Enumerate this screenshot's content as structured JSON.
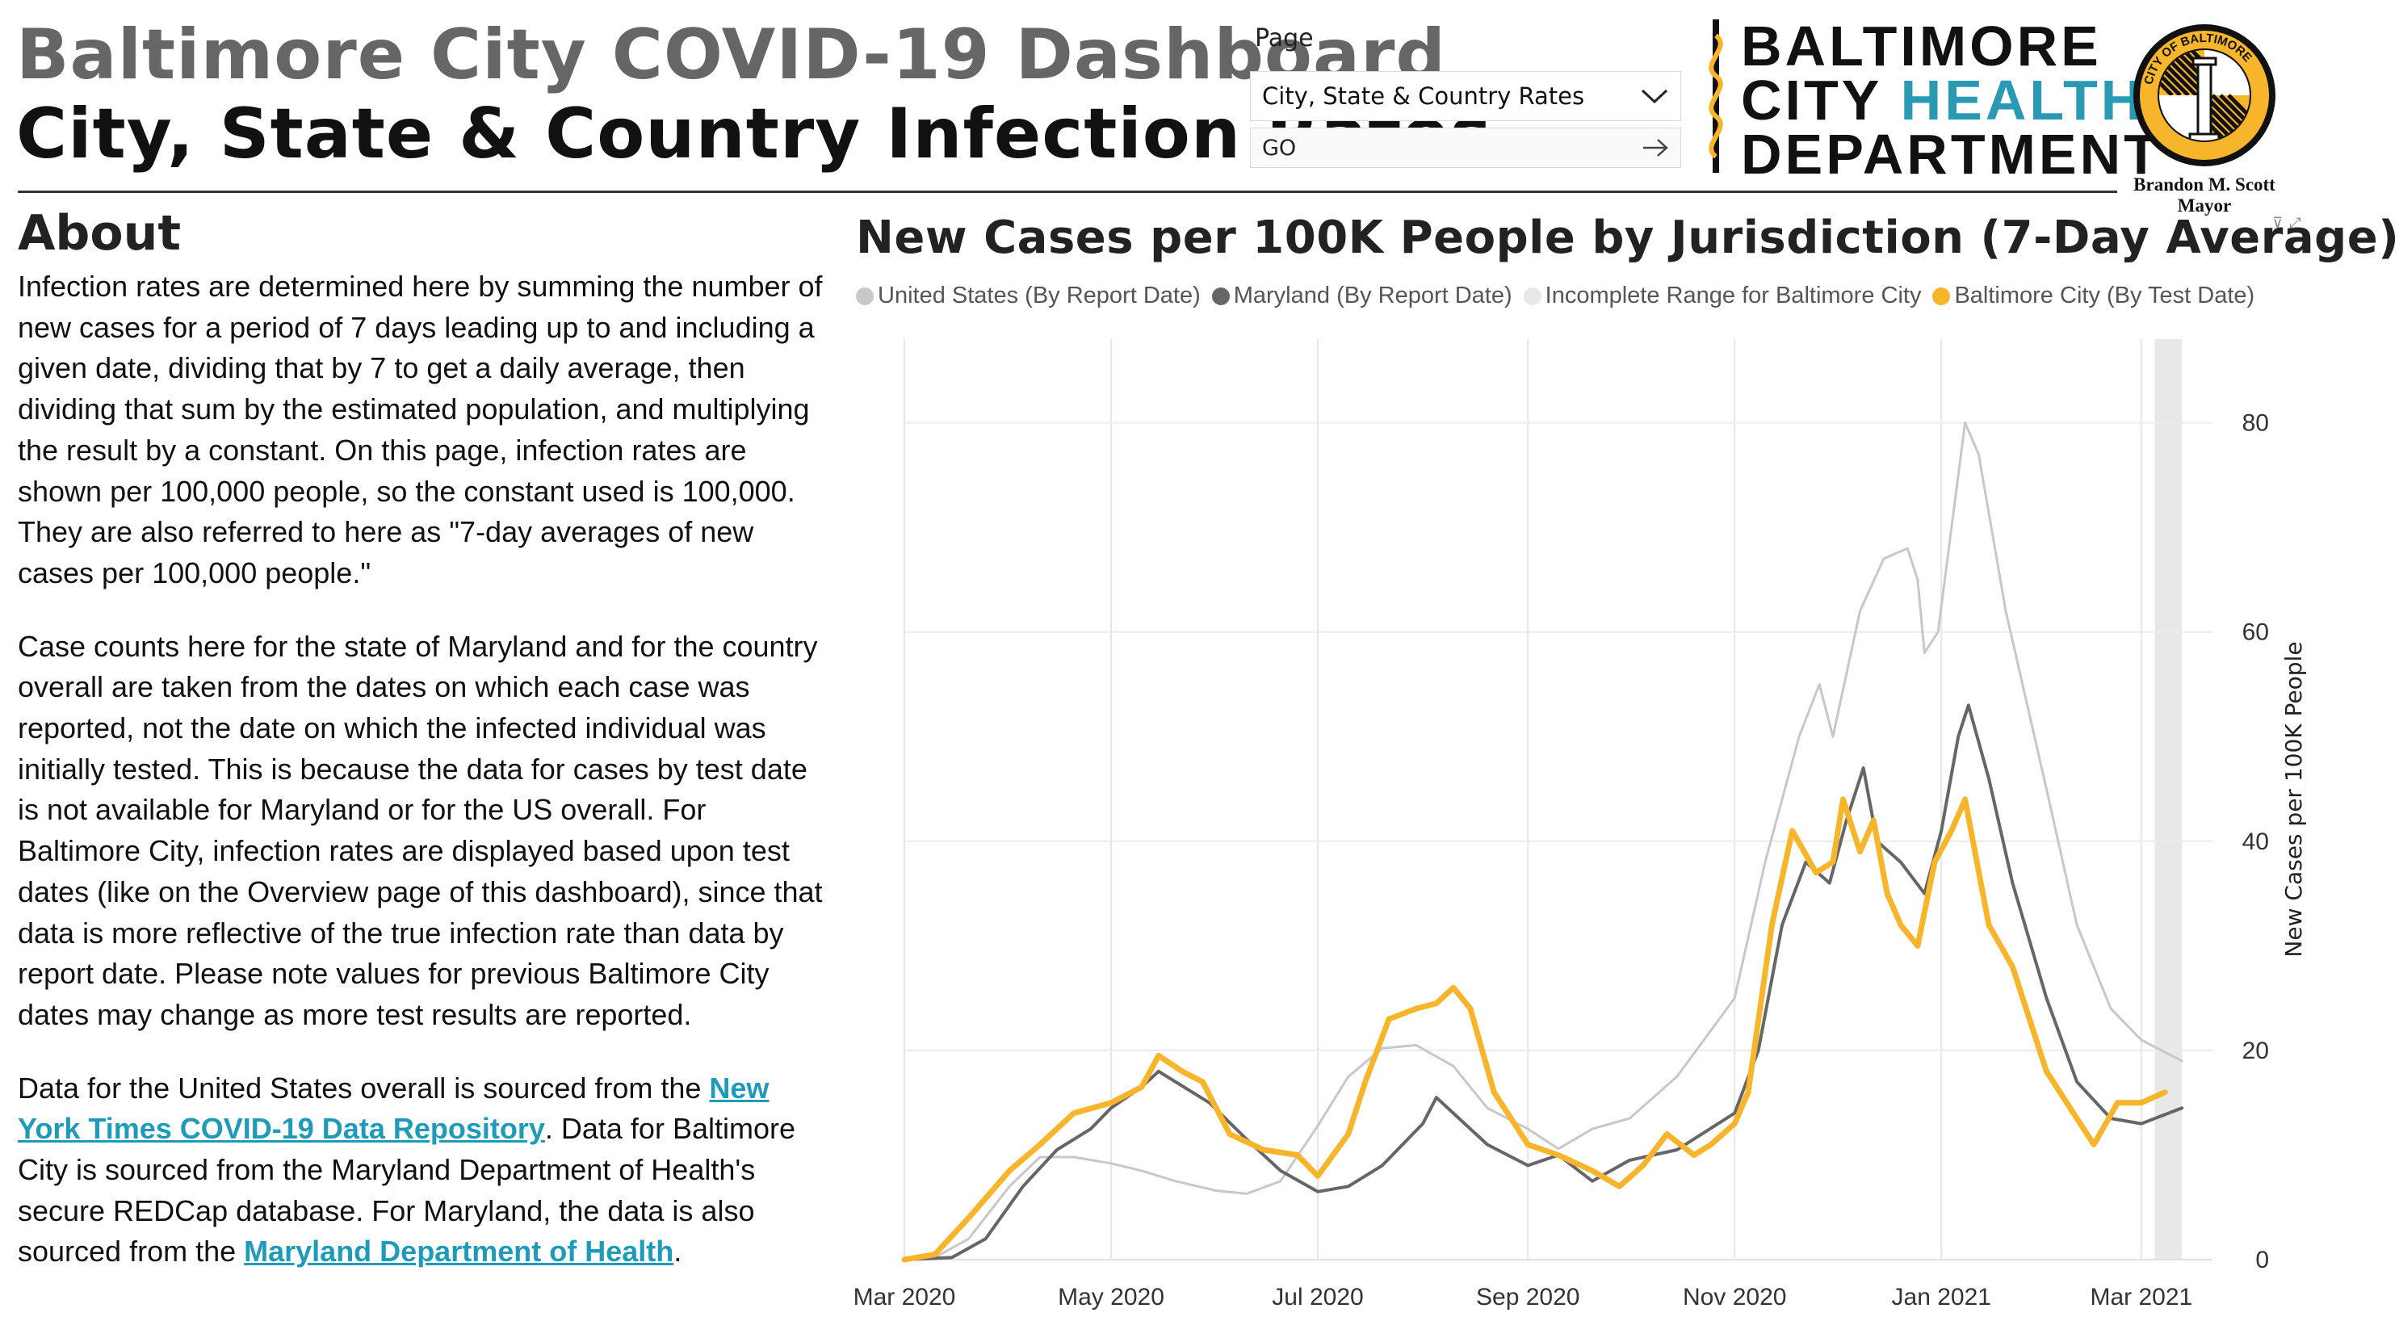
{
  "header": {
    "title": "Baltimore City COVID-19 Dashboard",
    "subtitle": "City, State & Country Infection Rates"
  },
  "nav": {
    "page_label": "Page",
    "page_value": "City, State & Country Rates",
    "go_label": "GO"
  },
  "logo": {
    "line1": "BALTIMORE",
    "line2a": "CITY ",
    "line2b": "HEALTH",
    "line3": "DEPARTMENT",
    "teal_color": "#2a99b4"
  },
  "seal": {
    "ring_text": "CITY OF BALTIMORE",
    "mayor_name": "Brandon M. Scott",
    "mayor_title": "Mayor"
  },
  "about": {
    "heading": "About",
    "p1": "Infection rates are determined here by summing the number of new cases for a period of 7 days leading up to and including a given date, dividing that by 7 to get a daily average, then dividing that sum by the estimated population, and multiplying the result by a constant. On this page, infection rates are shown per 100,000 people, so the constant used is 100,000. They are also referred to here as \"7-day averages of new cases per 100,000 people.\"",
    "p2": "Case counts here for the state of Maryland and for the country overall are taken from the dates on which each case was reported, not the date on which the infected individual was initially tested. This is because the data for cases by test date is not available for Maryland or for the US overall. For Baltimore City, infection rates are displayed based upon test dates (like on the Overview page of this dashboard), since that data is more reflective of the true infection rate than data by report date. Please note values for previous Baltimore City dates may change as more test results are reported.",
    "p3_a": "Data for the United States overall is sourced from the ",
    "link1": "New York Times COVID-19 Data Repository",
    "p3_b": ". Data for Baltimore City is sourced from the Maryland Department of Health's secure REDCap database. For Maryland, the data is also sourced from the ",
    "link2": "Maryland Department of Health",
    "p3_c": "."
  },
  "chart_data": {
    "type": "line",
    "title": "New Cases per 100K People by Jurisdiction (7-Day Average)",
    "ylabel": "New Cases per 100K People",
    "xlabel": "",
    "xlim": [
      "2020-03-01",
      "2021-03-22"
    ],
    "ylim": [
      0,
      88
    ],
    "yticks": [
      0,
      20,
      40,
      60,
      80
    ],
    "xticks": [
      "2020-03-01",
      "2020-05-01",
      "2020-07-01",
      "2020-09-01",
      "2020-11-01",
      "2021-01-01",
      "2021-03-01"
    ],
    "xtick_labels": [
      "Mar 2020",
      "May 2020",
      "Jul 2020",
      "Sep 2020",
      "Nov 2020",
      "Jan 2021",
      "Mar 2021"
    ],
    "grid": true,
    "legend_position": "top",
    "y_axis_side": "right",
    "incomplete_range": [
      "2021-03-05",
      "2021-03-13"
    ],
    "series": [
      {
        "name": "United States (By Report Date)",
        "color": "#c8c8c8",
        "points": [
          [
            "2020-03-01",
            0
          ],
          [
            "2020-03-10",
            0.2
          ],
          [
            "2020-03-20",
            2
          ],
          [
            "2020-04-01",
            7
          ],
          [
            "2020-04-10",
            9.8
          ],
          [
            "2020-04-20",
            9.8
          ],
          [
            "2020-05-01",
            9.2
          ],
          [
            "2020-05-10",
            8.5
          ],
          [
            "2020-05-20",
            7.5
          ],
          [
            "2020-06-01",
            6.6
          ],
          [
            "2020-06-10",
            6.3
          ],
          [
            "2020-06-20",
            7.5
          ],
          [
            "2020-07-01",
            12.8
          ],
          [
            "2020-07-10",
            17.5
          ],
          [
            "2020-07-20",
            20.2
          ],
          [
            "2020-07-30",
            20.5
          ],
          [
            "2020-08-10",
            18.5
          ],
          [
            "2020-08-20",
            14.5
          ],
          [
            "2020-09-01",
            12.5
          ],
          [
            "2020-09-10",
            10.6
          ],
          [
            "2020-09-20",
            12.5
          ],
          [
            "2020-10-01",
            13.5
          ],
          [
            "2020-10-15",
            17.5
          ],
          [
            "2020-11-01",
            25
          ],
          [
            "2020-11-10",
            38
          ],
          [
            "2020-11-20",
            50
          ],
          [
            "2020-11-26",
            55
          ],
          [
            "2020-11-30",
            50
          ],
          [
            "2020-12-08",
            62
          ],
          [
            "2020-12-15",
            67
          ],
          [
            "2020-12-22",
            68
          ],
          [
            "2020-12-25",
            65
          ],
          [
            "2020-12-27",
            58
          ],
          [
            "2020-12-31",
            60
          ],
          [
            "2021-01-06",
            75
          ],
          [
            "2021-01-08",
            80
          ],
          [
            "2021-01-12",
            77
          ],
          [
            "2021-01-20",
            62
          ],
          [
            "2021-02-01",
            45
          ],
          [
            "2021-02-10",
            32
          ],
          [
            "2021-02-20",
            24
          ],
          [
            "2021-03-01",
            21
          ],
          [
            "2021-03-10",
            19.5
          ],
          [
            "2021-03-13",
            19
          ]
        ]
      },
      {
        "name": "Maryland (By Report Date)",
        "color": "#666666",
        "points": [
          [
            "2020-03-01",
            0
          ],
          [
            "2020-03-15",
            0.2
          ],
          [
            "2020-03-25",
            2
          ],
          [
            "2020-04-05",
            7
          ],
          [
            "2020-04-15",
            10.5
          ],
          [
            "2020-04-25",
            12.5
          ],
          [
            "2020-05-01",
            14.5
          ],
          [
            "2020-05-10",
            16.5
          ],
          [
            "2020-05-15",
            18
          ],
          [
            "2020-05-20",
            17
          ],
          [
            "2020-05-30",
            15
          ],
          [
            "2020-06-10",
            11.5
          ],
          [
            "2020-06-20",
            8.5
          ],
          [
            "2020-07-01",
            6.5
          ],
          [
            "2020-07-10",
            7
          ],
          [
            "2020-07-20",
            9
          ],
          [
            "2020-08-01",
            13
          ],
          [
            "2020-08-05",
            15.5
          ],
          [
            "2020-08-10",
            14
          ],
          [
            "2020-08-20",
            11
          ],
          [
            "2020-09-01",
            9
          ],
          [
            "2020-09-10",
            10
          ],
          [
            "2020-09-20",
            7.5
          ],
          [
            "2020-10-01",
            9.5
          ],
          [
            "2020-10-15",
            10.5
          ],
          [
            "2020-11-01",
            14
          ],
          [
            "2020-11-08",
            20
          ],
          [
            "2020-11-15",
            32
          ],
          [
            "2020-11-22",
            38
          ],
          [
            "2020-11-29",
            36
          ],
          [
            "2020-12-04",
            42
          ],
          [
            "2020-12-09",
            47
          ],
          [
            "2020-12-13",
            40
          ],
          [
            "2020-12-20",
            38
          ],
          [
            "2020-12-27",
            35
          ],
          [
            "2021-01-01",
            41
          ],
          [
            "2021-01-06",
            50
          ],
          [
            "2021-01-09",
            53
          ],
          [
            "2021-01-15",
            46
          ],
          [
            "2021-01-22",
            36
          ],
          [
            "2021-02-01",
            25
          ],
          [
            "2021-02-10",
            17
          ],
          [
            "2021-02-20",
            13.5
          ],
          [
            "2021-03-01",
            13
          ],
          [
            "2021-03-13",
            14.5
          ]
        ]
      },
      {
        "name": "Incomplete Range for Baltimore City",
        "color": "#e8e8e8",
        "points": []
      },
      {
        "name": "Baltimore City (By Test Date)",
        "color": "#f7b52c",
        "points": [
          [
            "2020-03-01",
            0
          ],
          [
            "2020-03-10",
            0.5
          ],
          [
            "2020-03-20",
            4
          ],
          [
            "2020-04-01",
            8.5
          ],
          [
            "2020-04-10",
            11
          ],
          [
            "2020-04-20",
            14
          ],
          [
            "2020-05-01",
            15
          ],
          [
            "2020-05-10",
            16.5
          ],
          [
            "2020-05-15",
            19.5
          ],
          [
            "2020-05-22",
            18
          ],
          [
            "2020-05-28",
            17
          ],
          [
            "2020-06-05",
            12
          ],
          [
            "2020-06-15",
            10.5
          ],
          [
            "2020-06-25",
            10
          ],
          [
            "2020-07-01",
            8
          ],
          [
            "2020-07-10",
            12
          ],
          [
            "2020-07-15",
            17
          ],
          [
            "2020-07-22",
            23
          ],
          [
            "2020-07-30",
            24
          ],
          [
            "2020-08-05",
            24.5
          ],
          [
            "2020-08-10",
            26
          ],
          [
            "2020-08-15",
            24
          ],
          [
            "2020-08-22",
            16
          ],
          [
            "2020-09-01",
            11
          ],
          [
            "2020-09-10",
            10
          ],
          [
            "2020-09-20",
            8.5
          ],
          [
            "2020-09-28",
            7
          ],
          [
            "2020-10-05",
            9
          ],
          [
            "2020-10-12",
            12
          ],
          [
            "2020-10-20",
            10
          ],
          [
            "2020-10-25",
            11
          ],
          [
            "2020-11-01",
            13
          ],
          [
            "2020-11-05",
            16
          ],
          [
            "2020-11-12",
            32
          ],
          [
            "2020-11-18",
            41
          ],
          [
            "2020-11-25",
            37
          ],
          [
            "2020-11-30",
            38
          ],
          [
            "2020-12-03",
            44
          ],
          [
            "2020-12-08",
            39
          ],
          [
            "2020-12-12",
            42
          ],
          [
            "2020-12-16",
            35
          ],
          [
            "2020-12-20",
            32
          ],
          [
            "2020-12-25",
            30
          ],
          [
            "2020-12-30",
            38
          ],
          [
            "2021-01-04",
            41
          ],
          [
            "2021-01-08",
            44
          ],
          [
            "2021-01-15",
            32
          ],
          [
            "2021-01-22",
            28
          ],
          [
            "2021-02-01",
            18
          ],
          [
            "2021-02-10",
            13.5
          ],
          [
            "2021-02-15",
            11
          ],
          [
            "2021-02-22",
            15
          ],
          [
            "2021-03-01",
            15
          ],
          [
            "2021-03-08",
            16
          ]
        ]
      }
    ]
  }
}
